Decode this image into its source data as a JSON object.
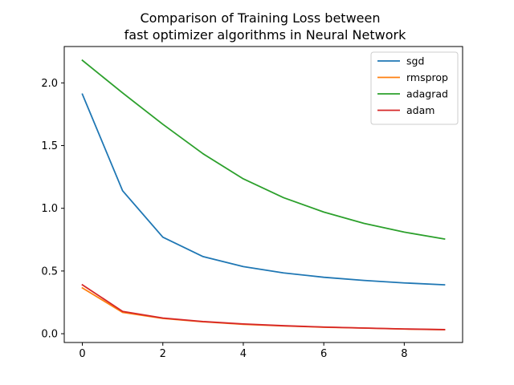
{
  "chart_data": {
    "type": "line",
    "title": [
      "Comparison of Training Loss between",
      "fast optimizer algorithms in Neural Network"
    ],
    "xlabel": "",
    "ylabel": "",
    "x": [
      0,
      1,
      2,
      3,
      4,
      5,
      6,
      7,
      8,
      9
    ],
    "xlim": [
      -0.45,
      9.45
    ],
    "ylim": [
      -0.07,
      2.29
    ],
    "xticks": [
      0,
      2,
      4,
      6,
      8
    ],
    "yticks": [
      0.0,
      0.5,
      1.0,
      1.5,
      2.0
    ],
    "ytick_labels": [
      "0.0",
      "0.5",
      "1.0",
      "1.5",
      "2.0"
    ],
    "grid": false,
    "legend_position": "top-right",
    "series": [
      {
        "name": "sgd",
        "color": "#1f77b4",
        "values": [
          1.91,
          1.14,
          0.77,
          0.615,
          0.535,
          0.485,
          0.45,
          0.425,
          0.405,
          0.39
        ]
      },
      {
        "name": "rmsprop",
        "color": "#ff7f0e",
        "values": [
          0.365,
          0.17,
          0.122,
          0.095,
          0.075,
          0.062,
          0.052,
          0.045,
          0.037,
          0.032
        ]
      },
      {
        "name": "adagrad",
        "color": "#2ca02c",
        "values": [
          2.18,
          1.92,
          1.67,
          1.435,
          1.235,
          1.085,
          0.97,
          0.88,
          0.81,
          0.755
        ]
      },
      {
        "name": "adam",
        "color": "#d62728",
        "values": [
          0.39,
          0.178,
          0.125,
          0.097,
          0.078,
          0.064,
          0.053,
          0.045,
          0.038,
          0.033
        ]
      }
    ]
  }
}
